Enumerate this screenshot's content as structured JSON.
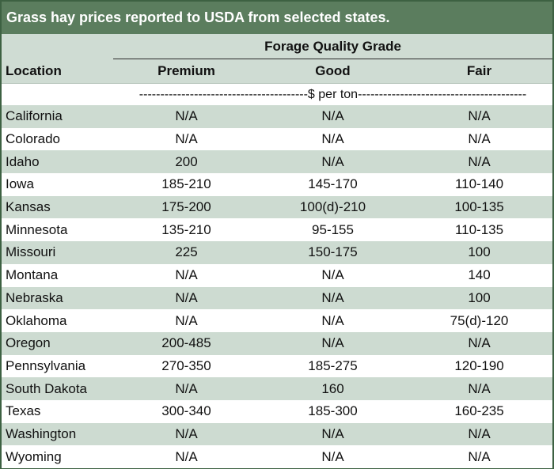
{
  "title": "Grass hay prices reported to USDA from selected states.",
  "header": {
    "group_label": "Forage Quality Grade",
    "location_label": "Location",
    "columns": [
      "Premium",
      "Good",
      "Fair"
    ],
    "units": "----------------------------------------$ per ton----------------------------------------"
  },
  "rows": [
    {
      "location": "California",
      "premium": "N/A",
      "good": "N/A",
      "fair": "N/A"
    },
    {
      "location": "Colorado",
      "premium": "N/A",
      "good": "N/A",
      "fair": "N/A"
    },
    {
      "location": "Idaho",
      "premium": "200",
      "good": "N/A",
      "fair": "N/A"
    },
    {
      "location": "Iowa",
      "premium": "185-210",
      "good": "145-170",
      "fair": "110-140"
    },
    {
      "location": "Kansas",
      "premium": "175-200",
      "good": "100(d)-210",
      "fair": "100-135"
    },
    {
      "location": "Minnesota",
      "premium": "135-210",
      "good": "95-155",
      "fair": "110-135"
    },
    {
      "location": "Missouri",
      "premium": "225",
      "good": "150-175",
      "fair": "100"
    },
    {
      "location": "Montana",
      "premium": "N/A",
      "good": "N/A",
      "fair": "140"
    },
    {
      "location": "Nebraska",
      "premium": "N/A",
      "good": "N/A",
      "fair": "100"
    },
    {
      "location": "Oklahoma",
      "premium": "N/A",
      "good": "N/A",
      "fair": "75(d)-120"
    },
    {
      "location": "Oregon",
      "premium": "200-485",
      "good": "N/A",
      "fair": "N/A"
    },
    {
      "location": "Pennsylvania",
      "premium": "270-350",
      "good": "185-275",
      "fair": "120-190"
    },
    {
      "location": "South Dakota",
      "premium": "N/A",
      "good": "160",
      "fair": "N/A"
    },
    {
      "location": "Texas",
      "premium": "300-340",
      "good": "185-300",
      "fair": "160-235"
    },
    {
      "location": "Washington",
      "premium": "N/A",
      "good": "N/A",
      "fair": "N/A"
    },
    {
      "location": "Wyoming",
      "premium": "N/A",
      "good": "N/A",
      "fair": "N/A"
    }
  ]
}
